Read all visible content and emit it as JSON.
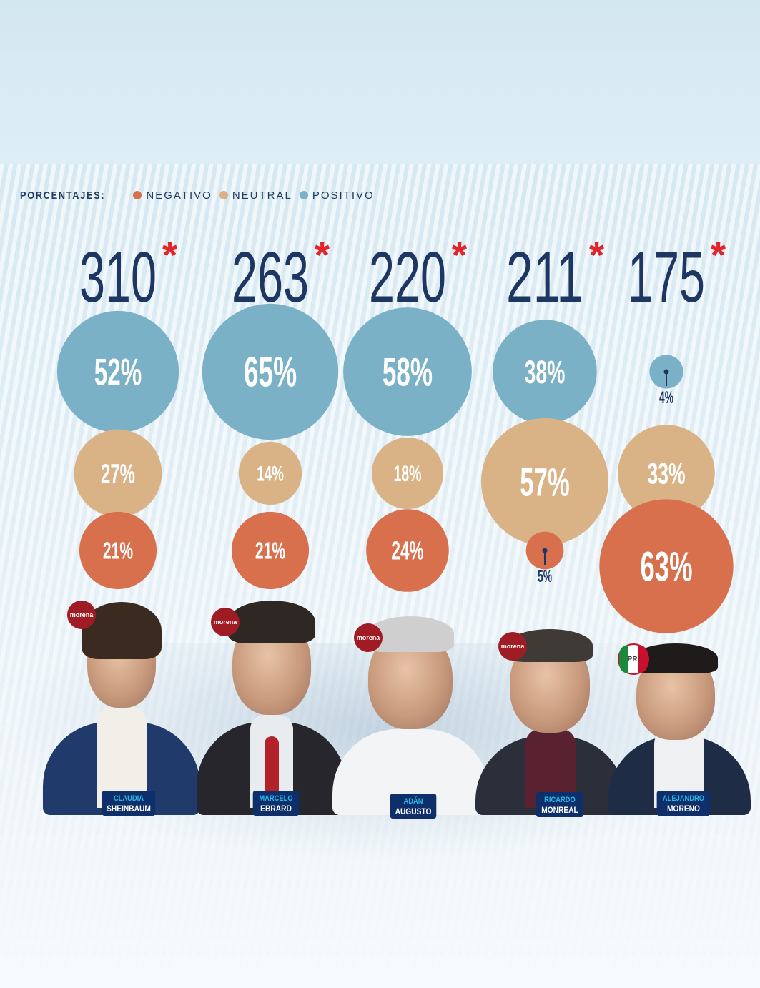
{
  "colors": {
    "negativo": "#d8704e",
    "neutral": "#d9b386",
    "positivo": "#7ab1c6",
    "navy": "#1d3762",
    "asterisk": "#e2242b"
  },
  "legend": {
    "label": "PORCENTAJES:",
    "items": [
      "NEGATIVO",
      "NEUTRAL",
      "POSITIVO"
    ]
  },
  "chart_data": {
    "type": "bubble",
    "categories": [
      "CLAUDIA SHEINBAUM",
      "MARCELO EBRARD",
      "ADÁN AUGUSTO",
      "RICARDO MONREAL",
      "ALEJANDRO MORENO"
    ],
    "totals": [
      "310",
      "263",
      "220",
      "211",
      "175"
    ],
    "total_suffix": "*",
    "series": [
      {
        "name": "POSITIVO",
        "values": [
          52,
          65,
          58,
          38,
          4
        ]
      },
      {
        "name": "NEUTRAL",
        "values": [
          27,
          14,
          18,
          57,
          33
        ]
      },
      {
        "name": "NEGATIVO",
        "values": [
          21,
          21,
          24,
          5,
          63
        ]
      }
    ]
  },
  "candidates": [
    {
      "first": "CLAUDIA",
      "last": "SHEINBAUM",
      "party": "morena"
    },
    {
      "first": "MARCELO",
      "last": "EBRARD",
      "party": "morena"
    },
    {
      "first": "ADÁN",
      "last": "AUGUSTO",
      "party": "morena"
    },
    {
      "first": "RICARDO",
      "last": "MONREAL",
      "party": "morena"
    },
    {
      "first": "ALEJANDRO",
      "last": "MORENO",
      "party": "PRI"
    }
  ]
}
